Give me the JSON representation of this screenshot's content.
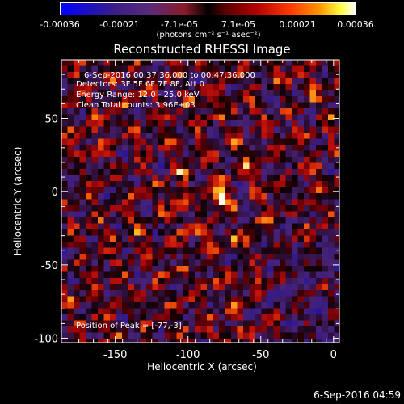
{
  "colorbar": {
    "ticks": [
      "-0.00036",
      "-0.00021",
      "-7.1e-05",
      "7.1e-05",
      "0.00021",
      "0.00036"
    ],
    "unit_label": "(photons cm⁻² s⁻¹ asec⁻²)"
  },
  "chart_data": {
    "type": "heatmap",
    "title": "Reconstructed RHESSI Image",
    "xlabel": "Heliocentric X (arcsec)",
    "ylabel": "Heliocentric Y (arcsec)",
    "xlim": [
      -187,
      4
    ],
    "ylim": [
      -103,
      90
    ],
    "x_ticks": [
      "-150",
      "-100",
      "-50",
      "0"
    ],
    "y_ticks": [
      "50",
      "0",
      "-50",
      "-100"
    ],
    "x_tick_values": [
      -150,
      -100,
      -50,
      0
    ],
    "y_tick_values": [
      50,
      0,
      -50,
      -100
    ],
    "peak": {
      "x": -77,
      "y": -3
    },
    "colorscale_range": [
      -0.00036,
      0.00036
    ],
    "annotations": {
      "time_range": "6-Sep-2016 00:37:36.000 to 00:47:36.000",
      "detectors": "Detectors: 3F 5F 6F 7F 8F, Att 0",
      "energy": "Energy Range: 12.0 - 25.0 keV",
      "method": "Clean    Total counts: 3.96E+03",
      "peak_text": "Position of Peak = [-77,-3]"
    }
  },
  "timestamp": "6-Sep-2016 04:59"
}
